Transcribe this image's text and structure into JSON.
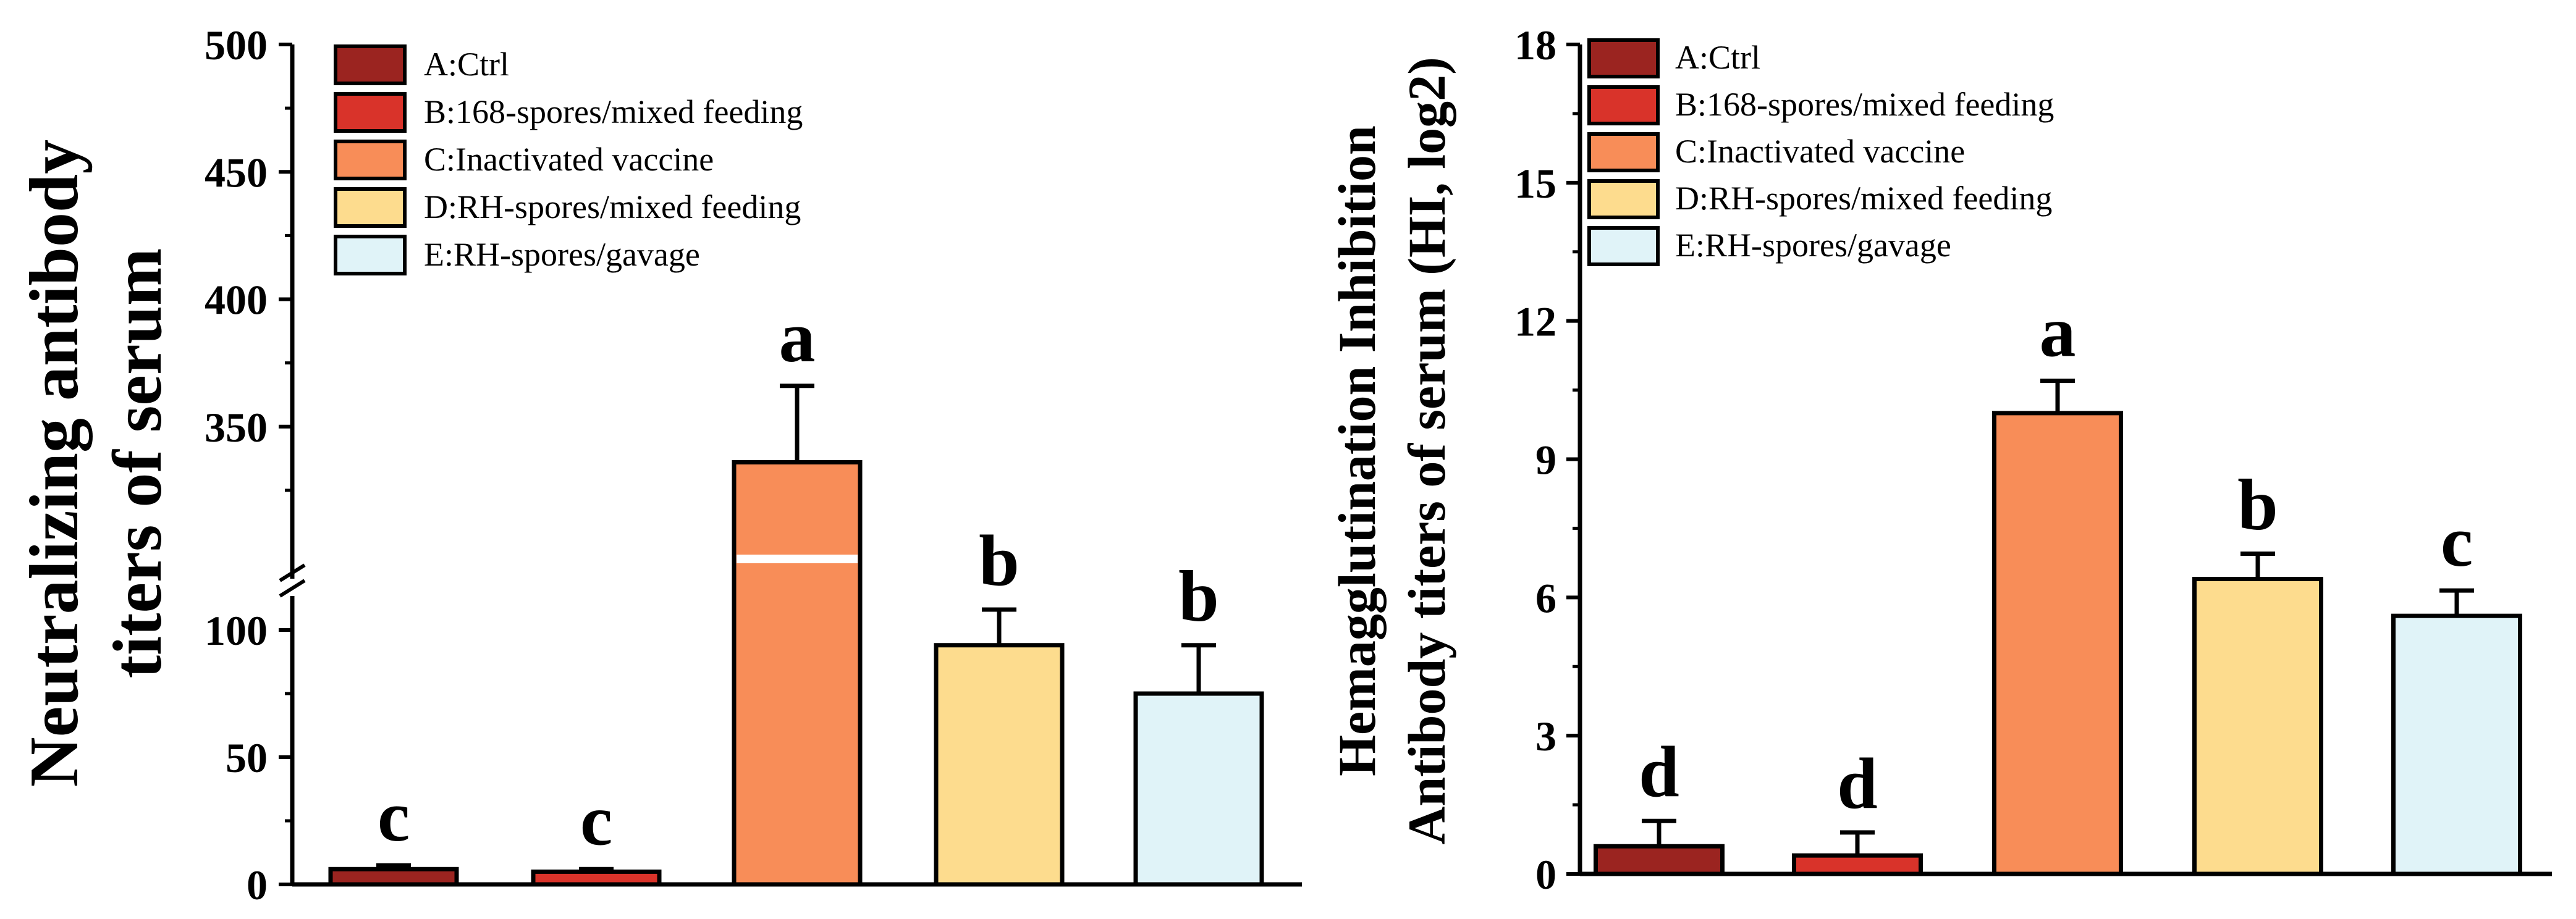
{
  "chart_data": [
    {
      "type": "bar",
      "ylabel_lines": [
        "Neutralizing antibody",
        "titers of serum"
      ],
      "axis_break": true,
      "lower_ylim": [
        0,
        120
      ],
      "upper_ylim": [
        300,
        500
      ],
      "lower_ticks": [
        0,
        50,
        100
      ],
      "upper_ticks": [
        350,
        400,
        450,
        500
      ],
      "categories": [
        "A",
        "B",
        "C",
        "D",
        "E"
      ],
      "values": [
        6,
        5,
        336,
        94,
        75
      ],
      "errors": [
        1.5,
        1,
        30,
        14,
        19
      ],
      "significance": [
        "c",
        "c",
        "a",
        "b",
        "b"
      ],
      "legend": [
        "A:Ctrl",
        "B:168-spores/mixed feeding",
        "C:Inactivated vaccine",
        "D:RH-spores/mixed feeding",
        "E:RH-spores/gavage"
      ],
      "colors": [
        "#9B2420",
        "#D9332A",
        "#F88D58",
        "#FDDC8E",
        "#E0F3F8"
      ]
    },
    {
      "type": "bar",
      "ylabel_lines": [
        "Hemagglutination Inhibition",
        "Antibody titers of serum (HI, log2)"
      ],
      "ylim": [
        0,
        18
      ],
      "ticks": [
        0,
        3,
        6,
        9,
        12,
        15,
        18
      ],
      "categories": [
        "A",
        "B",
        "C",
        "D",
        "E"
      ],
      "values": [
        0.6,
        0.4,
        10,
        6.4,
        5.6
      ],
      "errors": [
        0.55,
        0.5,
        0.7,
        0.55,
        0.55
      ],
      "significance": [
        "d",
        "d",
        "a",
        "b",
        "c"
      ],
      "legend": [
        "A:Ctrl",
        "B:168-spores/mixed feeding",
        "C:Inactivated vaccine",
        "D:RH-spores/mixed feeding",
        "E:RH-spores/gavage"
      ],
      "colors": [
        "#9B2420",
        "#D9332A",
        "#F88D58",
        "#FDDC8E",
        "#E0F3F8"
      ]
    }
  ]
}
